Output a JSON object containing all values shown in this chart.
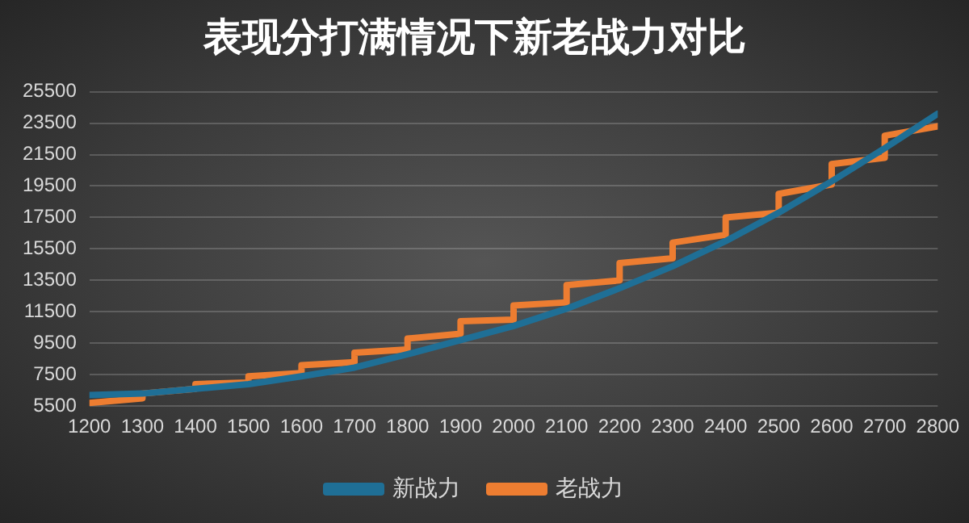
{
  "chart_data": {
    "type": "line",
    "title": "表现分打满情况下新老战力对比",
    "xlim": [
      1200,
      2800
    ],
    "xticks": [
      1200,
      1300,
      1400,
      1500,
      1600,
      1700,
      1800,
      1900,
      2000,
      2100,
      2200,
      2300,
      2400,
      2500,
      2600,
      2700,
      2800
    ],
    "ylim": [
      5500,
      25500
    ],
    "yticks": [
      5500,
      7500,
      9500,
      11500,
      13500,
      15500,
      17500,
      19500,
      21500,
      23500,
      25500
    ],
    "grid": "y",
    "legend": "bottom",
    "marker": "none",
    "line_style": "solid",
    "series": [
      {
        "name": "新战力",
        "color": "#1f6f96",
        "x": [
          1200,
          1300,
          1400,
          1500,
          1600,
          1700,
          1800,
          1900,
          2000,
          2100,
          2200,
          2300,
          2400,
          2500,
          2600,
          2700,
          2800
        ],
        "values": [
          6200,
          6300,
          6600,
          6900,
          7400,
          7950,
          8800,
          9700,
          10600,
          11700,
          13000,
          14400,
          16000,
          17800,
          19800,
          21900,
          24100
        ]
      },
      {
        "name": "老战力",
        "color": "#ed7d31",
        "x": [
          1200,
          1300,
          1300,
          1400,
          1400,
          1500,
          1500,
          1600,
          1600,
          1700,
          1700,
          1800,
          1800,
          1900,
          1900,
          2000,
          2000,
          2100,
          2100,
          2200,
          2200,
          2300,
          2300,
          2400,
          2400,
          2500,
          2500,
          2600,
          2600,
          2700,
          2700,
          2800
        ],
        "values": [
          5700,
          6000,
          6300,
          6600,
          6900,
          7000,
          7400,
          7600,
          8100,
          8300,
          8900,
          9100,
          9800,
          10100,
          10900,
          11000,
          11900,
          12100,
          13200,
          13500,
          14600,
          14900,
          15900,
          16400,
          17500,
          17800,
          19000,
          19600,
          20900,
          21300,
          22700,
          23300
        ]
      }
    ]
  }
}
